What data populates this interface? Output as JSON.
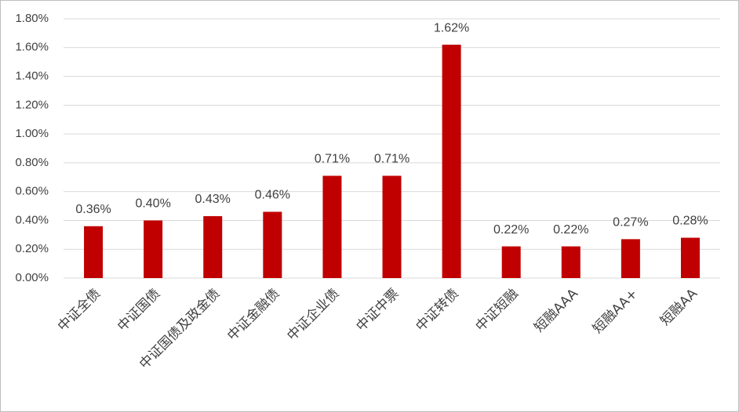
{
  "chart_data": {
    "type": "bar",
    "categories": [
      "中证全债",
      "中证国债",
      "中证国债及政金债",
      "中证金融债",
      "中证企业债",
      "中证中票",
      "中证转债",
      "中证短融",
      "短融AAA",
      "短融AA+",
      "短融AA"
    ],
    "values": [
      0.36,
      0.4,
      0.43,
      0.46,
      0.71,
      0.71,
      1.62,
      0.22,
      0.22,
      0.27,
      0.28
    ],
    "value_labels": [
      "0.36%",
      "0.40%",
      "0.43%",
      "0.46%",
      "0.71%",
      "0.71%",
      "1.62%",
      "0.22%",
      "0.22%",
      "0.27%",
      "0.28%"
    ],
    "color": "#c00000",
    "ylim": [
      0,
      1.8
    ],
    "yticks": [
      {
        "value": 0,
        "label": "0.00%"
      },
      {
        "value": 0.2,
        "label": "0.20%"
      },
      {
        "value": 0.4,
        "label": "0.40%"
      },
      {
        "value": 0.6,
        "label": "0.60%"
      },
      {
        "value": 0.8,
        "label": "0.80%"
      },
      {
        "value": 1.0,
        "label": "1.00%"
      },
      {
        "value": 1.2,
        "label": "1.20%"
      },
      {
        "value": 1.4,
        "label": "1.40%"
      },
      {
        "value": 1.6,
        "label": "1.60%"
      },
      {
        "value": 1.8,
        "label": "1.80%"
      }
    ],
    "grid": true
  }
}
